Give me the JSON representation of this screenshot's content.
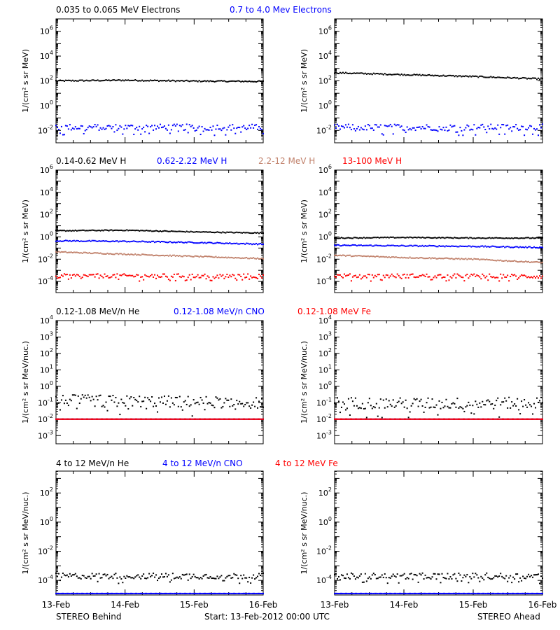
{
  "footer": {
    "left": "STEREO Behind",
    "center": "Start: 13-Feb-2012 00:00 UTC",
    "right": "STEREO Ahead"
  },
  "colors": {
    "black": "#000000",
    "blue": "#0000ff",
    "brown": "#c0806a",
    "red": "#ff0000"
  },
  "x_tick_labels": [
    "13-Feb",
    "14-Feb",
    "15-Feb",
    "16-Feb"
  ],
  "chart_data": [
    {
      "type": "scatter",
      "title": "0.035 to 0.065 MeV Electrons",
      "title2": "0.7 to 4.0 Mev Electrons",
      "ylabel": "1/(cm² s sr MeV)",
      "y_scale": "log",
      "ylim_log10": [
        -3,
        7
      ],
      "y_ticks": [
        "10^6",
        "10^4",
        "10^2",
        "10^0",
        "10^-2"
      ],
      "x": [
        0,
        1,
        2,
        3
      ],
      "x_unit": "days since 13-Feb-2012",
      "series": [
        {
          "name": "0.035 to 0.065 MeV Electrons",
          "color": "black",
          "behind_log10": [
            2.0,
            2.05,
            1.98,
            1.95
          ],
          "ahead_log10": [
            2.65,
            2.5,
            2.35,
            2.15
          ],
          "scatter": 0.05
        },
        {
          "name": "0.7 to 4.0 Mev Electrons",
          "color": "blue",
          "behind_log10": [
            -1.75,
            -1.75,
            -1.75,
            -1.75
          ],
          "ahead_log10": [
            -1.75,
            -1.75,
            -1.75,
            -1.75
          ],
          "scatter": 0.25
        }
      ]
    },
    {
      "type": "scatter",
      "labels": [
        "0.14-0.62 MeV H",
        "0.62-2.22 MeV H",
        "2.2-12 MeV H",
        "13-100 MeV H"
      ],
      "label_colors": [
        "black",
        "blue",
        "brown",
        "red"
      ],
      "ylabel": "1/(cm² s sr MeV)",
      "y_scale": "log",
      "ylim_log10": [
        -5,
        6
      ],
      "y_ticks": [
        "10^6",
        "10^4",
        "10^2",
        "10^0",
        "10^-2",
        "10^-4"
      ],
      "series": [
        {
          "name": "0.14-0.62 MeV H",
          "color": "black",
          "behind_log10": [
            0.55,
            0.6,
            0.45,
            0.35
          ],
          "ahead_log10": [
            -0.1,
            -0.05,
            -0.1,
            -0.1
          ],
          "scatter": 0.04
        },
        {
          "name": "0.62-2.22 MeV H",
          "color": "blue",
          "behind_log10": [
            -0.35,
            -0.4,
            -0.5,
            -0.65
          ],
          "ahead_log10": [
            -0.75,
            -0.8,
            -0.85,
            -0.95
          ],
          "scatter": 0.05
        },
        {
          "name": "2.2-12 MeV H",
          "color": "brown",
          "behind_log10": [
            -1.35,
            -1.55,
            -1.75,
            -1.95
          ],
          "ahead_log10": [
            -1.65,
            -1.85,
            -2.0,
            -2.3
          ],
          "scatter": 0.05
        },
        {
          "name": "13-100 MeV H",
          "color": "red",
          "behind_log10": [
            -3.5,
            -3.5,
            -3.5,
            -3.5
          ],
          "ahead_log10": [
            -3.5,
            -3.5,
            -3.5,
            -3.55
          ],
          "scatter": 0.18
        }
      ]
    },
    {
      "type": "scatter",
      "labels": [
        "0.12-1.08 MeV/n He",
        "0.12-1.08 MeV/n CNO",
        "0.12-1.08 MeV Fe"
      ],
      "label_colors": [
        "black",
        "blue",
        "red"
      ],
      "ylabel": "1/(cm² s sr MeV/nuc.)",
      "y_scale": "log",
      "ylim_log10": [
        -3.5,
        4
      ],
      "y_ticks": [
        "10^4",
        "10^3",
        "10^2",
        "10^1",
        "10^0",
        "10^-1",
        "10^-2",
        "10^-3"
      ],
      "series": [
        {
          "name": "0.12-1.08 MeV/n He",
          "color": "black",
          "behind_log10": [
            -0.85,
            -0.9,
            -0.95,
            -1.0
          ],
          "ahead_log10": [
            -1.0,
            -1.05,
            -1.05,
            -1.0
          ],
          "scatter": 0.35
        },
        {
          "name": "0.12-1.08 MeV/n CNO",
          "color": "blue",
          "behind_log10": [
            -2.0,
            -2.0,
            -2.0,
            -2.0
          ],
          "ahead_log10": [
            -2.0,
            -2.0,
            -2.0,
            -2.0
          ],
          "scatter": 0.0
        },
        {
          "name": "0.12-1.08 MeV Fe",
          "color": "red",
          "behind_log10": [
            -2.0,
            -2.0,
            -2.0,
            -2.0
          ],
          "ahead_log10": [
            -2.0,
            -2.0,
            -2.0,
            -2.0
          ],
          "scatter": 0.0
        }
      ]
    },
    {
      "type": "scatter",
      "labels": [
        "4 to 12 MeV/n He",
        "4 to 12 MeV/n CNO",
        "4 to 12 MeV Fe"
      ],
      "label_colors": [
        "black",
        "blue",
        "red"
      ],
      "ylabel": "1/(cm² s sr MeV/nuc.)",
      "y_scale": "log",
      "ylim_log10": [
        -5,
        3.5
      ],
      "y_ticks": [
        "10^2",
        "10^0",
        "10^-2",
        "10^-4"
      ],
      "series": [
        {
          "name": "4 to 12 MeV/n He",
          "color": "black",
          "behind_log10": [
            -3.7,
            -3.7,
            -3.7,
            -3.7
          ],
          "ahead_log10": [
            -3.7,
            -3.7,
            -3.7,
            -3.7
          ],
          "scatter": 0.2
        },
        {
          "name": "4 to 12 MeV/n CNO",
          "color": "blue",
          "behind_log10": [
            -4.9,
            -4.9,
            -4.9,
            -4.9
          ],
          "ahead_log10": [
            -4.9,
            -4.9,
            -4.9,
            -4.9
          ],
          "scatter": 0.0
        }
      ]
    }
  ]
}
